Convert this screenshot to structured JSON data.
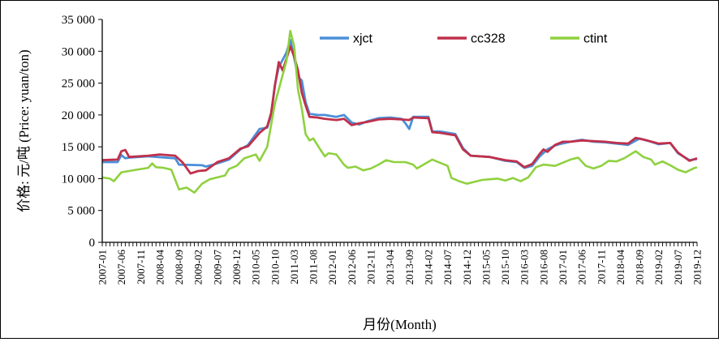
{
  "chart_data": {
    "type": "line",
    "xlabel": "月份(Month)",
    "ylabel": "价格: 元/吨 (Price: yuan/ton)",
    "ylim": [
      0,
      35000
    ],
    "yticks": [
      0,
      5000,
      10000,
      15000,
      20000,
      25000,
      30000,
      35000
    ],
    "ytick_labels": [
      "0",
      "5 000",
      "10 000",
      "15 000",
      "20 000",
      "25 000",
      "30 000",
      "35 000"
    ],
    "x_start": "2007-01",
    "x_end": "2019-12",
    "xtick_labels": [
      "2007-01",
      "2007-06",
      "2007-11",
      "2008-04",
      "2008-09",
      "2009-02",
      "2009-07",
      "2009-12",
      "2010-05",
      "2010-10",
      "2011-03",
      "2011-08",
      "2012-01",
      "2012-06",
      "2012-11",
      "2013-04",
      "2013-09",
      "2014-02",
      "2014-07",
      "2014-12",
      "2015-05",
      "2015-10",
      "2016-03",
      "2016-08",
      "2017-01",
      "2017-06",
      "2017-11",
      "2018-04",
      "2018-09",
      "2019-02",
      "2019-07",
      "2019-12"
    ],
    "legend_position": "top-right",
    "grid": false,
    "series": [
      {
        "name": "xjct",
        "color": "#4a8fd8",
        "points": [
          [
            "2007-01",
            12600
          ],
          [
            "2007-05",
            12600
          ],
          [
            "2007-06",
            13700
          ],
          [
            "2007-07",
            13200
          ],
          [
            "2007-08",
            13300
          ],
          [
            "2008-01",
            13500
          ],
          [
            "2008-08",
            13200
          ],
          [
            "2008-09",
            12200
          ],
          [
            "2009-03",
            12100
          ],
          [
            "2009-04",
            11900
          ],
          [
            "2009-06",
            12200
          ],
          [
            "2009-08",
            12600
          ],
          [
            "2009-10",
            13000
          ],
          [
            "2010-01",
            14600
          ],
          [
            "2010-03",
            15300
          ],
          [
            "2010-06",
            17800
          ],
          [
            "2010-08",
            18000
          ],
          [
            "2010-09",
            20000
          ],
          [
            "2010-10",
            24800
          ],
          [
            "2010-11",
            27500
          ],
          [
            "2011-01",
            29800
          ],
          [
            "2011-02",
            31800
          ],
          [
            "2011-03",
            29000
          ],
          [
            "2011-04",
            26000
          ],
          [
            "2011-05",
            25400
          ],
          [
            "2011-06",
            22000
          ],
          [
            "2011-07",
            20200
          ],
          [
            "2011-09",
            20000
          ],
          [
            "2011-11",
            20000
          ],
          [
            "2012-02",
            19700
          ],
          [
            "2012-04",
            20000
          ],
          [
            "2012-06",
            18800
          ],
          [
            "2012-08",
            18500
          ],
          [
            "2012-10",
            19000
          ],
          [
            "2013-01",
            19500
          ],
          [
            "2013-04",
            19600
          ],
          [
            "2013-07",
            19400
          ],
          [
            "2013-08",
            18700
          ],
          [
            "2013-09",
            17800
          ],
          [
            "2013-10",
            19700
          ],
          [
            "2014-02",
            19700
          ],
          [
            "2014-03",
            17400
          ],
          [
            "2014-05",
            17400
          ],
          [
            "2014-09",
            17000
          ],
          [
            "2014-11",
            14800
          ],
          [
            "2015-01",
            13600
          ],
          [
            "2015-06",
            13400
          ],
          [
            "2015-10",
            12800
          ],
          [
            "2016-01",
            12600
          ],
          [
            "2016-03",
            11700
          ],
          [
            "2016-05",
            12000
          ],
          [
            "2016-07",
            13500
          ],
          [
            "2016-09",
            14600
          ],
          [
            "2016-11",
            15200
          ],
          [
            "2016-12",
            15400
          ],
          [
            "2017-03",
            15800
          ],
          [
            "2017-06",
            16100
          ],
          [
            "2017-09",
            15800
          ],
          [
            "2017-12",
            15700
          ],
          [
            "2018-03",
            15500
          ],
          [
            "2018-06",
            15300
          ],
          [
            "2018-09",
            16300
          ],
          [
            "2018-12",
            15800
          ],
          [
            "2019-02",
            15400
          ],
          [
            "2019-05",
            15600
          ],
          [
            "2019-07",
            14000
          ],
          [
            "2019-10",
            12900
          ],
          [
            "2019-12",
            13100
          ]
        ]
      },
      {
        "name": "cc328",
        "color": "#c0304a",
        "points": [
          [
            "2007-01",
            12900
          ],
          [
            "2007-05",
            13000
          ],
          [
            "2007-06",
            14300
          ],
          [
            "2007-07",
            14500
          ],
          [
            "2007-08",
            13400
          ],
          [
            "2008-01",
            13600
          ],
          [
            "2008-04",
            13800
          ],
          [
            "2008-08",
            13600
          ],
          [
            "2008-10",
            12500
          ],
          [
            "2008-12",
            10800
          ],
          [
            "2009-02",
            11200
          ],
          [
            "2009-04",
            11300
          ],
          [
            "2009-07",
            12600
          ],
          [
            "2009-10",
            13200
          ],
          [
            "2010-01",
            14700
          ],
          [
            "2010-03",
            15100
          ],
          [
            "2010-06",
            17200
          ],
          [
            "2010-08",
            18200
          ],
          [
            "2010-09",
            20300
          ],
          [
            "2010-10",
            24600
          ],
          [
            "2010-11",
            28300
          ],
          [
            "2010-12",
            27000
          ],
          [
            "2011-01",
            28800
          ],
          [
            "2011-02",
            30800
          ],
          [
            "2011-03",
            29200
          ],
          [
            "2011-04",
            27000
          ],
          [
            "2011-05",
            23500
          ],
          [
            "2011-06",
            21500
          ],
          [
            "2011-07",
            19700
          ],
          [
            "2011-09",
            19600
          ],
          [
            "2011-11",
            19400
          ],
          [
            "2012-02",
            19200
          ],
          [
            "2012-04",
            19400
          ],
          [
            "2012-06",
            18400
          ],
          [
            "2012-08",
            18700
          ],
          [
            "2012-10",
            18900
          ],
          [
            "2013-01",
            19300
          ],
          [
            "2013-04",
            19400
          ],
          [
            "2013-07",
            19300
          ],
          [
            "2013-09",
            19200
          ],
          [
            "2013-10",
            19600
          ],
          [
            "2014-02",
            19500
          ],
          [
            "2014-03",
            17300
          ],
          [
            "2014-05",
            17200
          ],
          [
            "2014-09",
            16800
          ],
          [
            "2014-11",
            14600
          ],
          [
            "2015-01",
            13600
          ],
          [
            "2015-06",
            13400
          ],
          [
            "2015-10",
            12900
          ],
          [
            "2016-01",
            12700
          ],
          [
            "2016-03",
            11800
          ],
          [
            "2016-05",
            12300
          ],
          [
            "2016-07",
            13900
          ],
          [
            "2016-08",
            14600
          ],
          [
            "2016-09",
            14200
          ],
          [
            "2016-11",
            15300
          ],
          [
            "2017-01",
            15800
          ],
          [
            "2017-03",
            15800
          ],
          [
            "2017-06",
            16000
          ],
          [
            "2017-09",
            15900
          ],
          [
            "2017-12",
            15800
          ],
          [
            "2018-03",
            15600
          ],
          [
            "2018-06",
            15500
          ],
          [
            "2018-08",
            16400
          ],
          [
            "2018-11",
            16000
          ],
          [
            "2019-02",
            15500
          ],
          [
            "2019-05",
            15600
          ],
          [
            "2019-07",
            14100
          ],
          [
            "2019-10",
            12800
          ],
          [
            "2019-12",
            13200
          ]
        ]
      },
      {
        "name": "ctint",
        "color": "#8fd13f",
        "points": [
          [
            "2007-01",
            10200
          ],
          [
            "2007-03",
            10000
          ],
          [
            "2007-04",
            9600
          ],
          [
            "2007-06",
            11000
          ],
          [
            "2007-08",
            11200
          ],
          [
            "2007-10",
            11400
          ],
          [
            "2008-01",
            11700
          ],
          [
            "2008-02",
            12400
          ],
          [
            "2008-03",
            11800
          ],
          [
            "2008-05",
            11700
          ],
          [
            "2008-07",
            11400
          ],
          [
            "2008-09",
            8300
          ],
          [
            "2008-11",
            8600
          ],
          [
            "2009-01",
            7800
          ],
          [
            "2009-03",
            9200
          ],
          [
            "2009-05",
            9900
          ],
          [
            "2009-07",
            10200
          ],
          [
            "2009-09",
            10500
          ],
          [
            "2009-10",
            11500
          ],
          [
            "2009-12",
            12000
          ],
          [
            "2010-02",
            13200
          ],
          [
            "2010-05",
            13800
          ],
          [
            "2010-06",
            12800
          ],
          [
            "2010-08",
            15000
          ],
          [
            "2010-10",
            21800
          ],
          [
            "2010-11",
            24000
          ],
          [
            "2011-01",
            28500
          ],
          [
            "2011-02",
            33200
          ],
          [
            "2011-03",
            30800
          ],
          [
            "2011-04",
            24000
          ],
          [
            "2011-05",
            21000
          ],
          [
            "2011-06",
            17000
          ],
          [
            "2011-07",
            16000
          ],
          [
            "2011-08",
            16300
          ],
          [
            "2011-10",
            14400
          ],
          [
            "2011-11",
            13500
          ],
          [
            "2011-12",
            14000
          ],
          [
            "2012-02",
            13800
          ],
          [
            "2012-04",
            12200
          ],
          [
            "2012-05",
            11700
          ],
          [
            "2012-07",
            11900
          ],
          [
            "2012-09",
            11300
          ],
          [
            "2012-11",
            11600
          ],
          [
            "2013-01",
            12200
          ],
          [
            "2013-03",
            12900
          ],
          [
            "2013-05",
            12600
          ],
          [
            "2013-08",
            12600
          ],
          [
            "2013-10",
            12200
          ],
          [
            "2013-11",
            11600
          ],
          [
            "2014-01",
            12300
          ],
          [
            "2014-03",
            13000
          ],
          [
            "2014-05",
            12500
          ],
          [
            "2014-07",
            12000
          ],
          [
            "2014-08",
            10100
          ],
          [
            "2014-10",
            9600
          ],
          [
            "2014-12",
            9200
          ],
          [
            "2015-02",
            9500
          ],
          [
            "2015-04",
            9800
          ],
          [
            "2015-06",
            9900
          ],
          [
            "2015-08",
            10000
          ],
          [
            "2015-10",
            9700
          ],
          [
            "2015-12",
            10100
          ],
          [
            "2016-02",
            9600
          ],
          [
            "2016-04",
            10200
          ],
          [
            "2016-06",
            11800
          ],
          [
            "2016-08",
            12200
          ],
          [
            "2016-11",
            12000
          ],
          [
            "2017-01",
            12500
          ],
          [
            "2017-03",
            13000
          ],
          [
            "2017-05",
            13300
          ],
          [
            "2017-07",
            12000
          ],
          [
            "2017-09",
            11600
          ],
          [
            "2017-11",
            12000
          ],
          [
            "2018-01",
            12800
          ],
          [
            "2018-03",
            12700
          ],
          [
            "2018-05",
            13200
          ],
          [
            "2018-08",
            14300
          ],
          [
            "2018-10",
            13400
          ],
          [
            "2018-12",
            13000
          ],
          [
            "2019-01",
            12200
          ],
          [
            "2019-03",
            12700
          ],
          [
            "2019-05",
            12100
          ],
          [
            "2019-07",
            11400
          ],
          [
            "2019-09",
            11000
          ],
          [
            "2019-11",
            11600
          ],
          [
            "2019-12",
            11800
          ]
        ]
      }
    ]
  }
}
